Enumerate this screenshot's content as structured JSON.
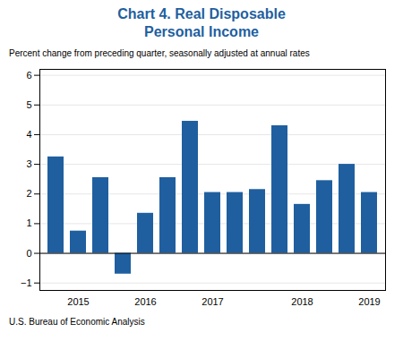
{
  "chart_data": {
    "type": "bar",
    "title": "Chart 4. Real Disposable\nPersonal Income",
    "subtitle": "Percent change from preceding quarter, seasonally adjusted at annual rates",
    "source": "U.S. Bureau of Economic Analysis",
    "categories": [
      null,
      "2015",
      null,
      null,
      "2016",
      null,
      null,
      "2017",
      null,
      null,
      null,
      "2018",
      null,
      null,
      "2019"
    ],
    "values": [
      3.25,
      0.75,
      2.55,
      -0.7,
      1.35,
      2.55,
      4.45,
      2.05,
      2.05,
      2.15,
      4.3,
      1.65,
      2.45,
      3.0,
      2.05
    ],
    "color": "#1F5F9F",
    "ylim": [
      -1.25,
      6.2
    ],
    "yticks": [
      {
        "value": -1,
        "label": "−1"
      },
      0,
      1,
      2,
      3,
      4,
      5,
      6
    ],
    "grid": true
  }
}
